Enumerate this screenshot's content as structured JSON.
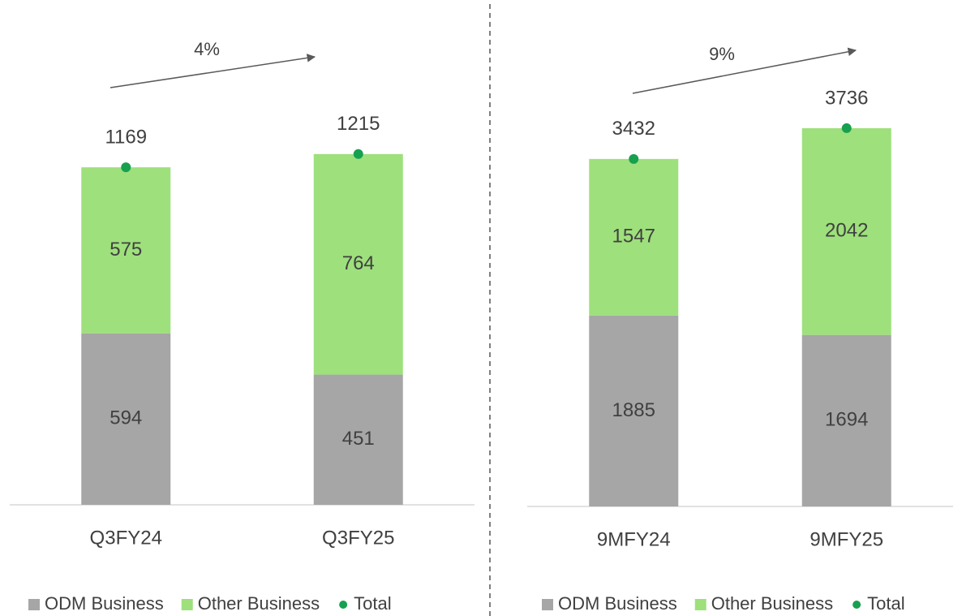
{
  "chart_data": [
    {
      "type": "bar",
      "stacked": true,
      "categories": [
        "Q3FY24",
        "Q3FY25"
      ],
      "series": [
        {
          "name": "ODM Business",
          "color": "#a6a6a6",
          "values": [
            594,
            451
          ]
        },
        {
          "name": "Other Business",
          "color": "#9ee07c",
          "values": [
            575,
            764
          ]
        },
        {
          "name": "Total",
          "type": "scatter",
          "color": "#17a050",
          "values": [
            1169,
            1215
          ]
        }
      ],
      "annotations": [
        "4%"
      ],
      "ylim": [
        0,
        1400
      ],
      "legend": "bottom"
    },
    {
      "type": "bar",
      "stacked": true,
      "categories": [
        "9MFY24",
        "9MFY25"
      ],
      "series": [
        {
          "name": "ODM Business",
          "color": "#a6a6a6",
          "values": [
            1885,
            1694
          ]
        },
        {
          "name": "Other Business",
          "color": "#9ee07c",
          "values": [
            1547,
            2042
          ]
        },
        {
          "name": "Total",
          "type": "scatter",
          "color": "#17a050",
          "values": [
            3432,
            3736
          ]
        }
      ],
      "annotations": [
        "9%"
      ],
      "ylim": [
        0,
        4000
      ],
      "legend": "bottom"
    }
  ]
}
